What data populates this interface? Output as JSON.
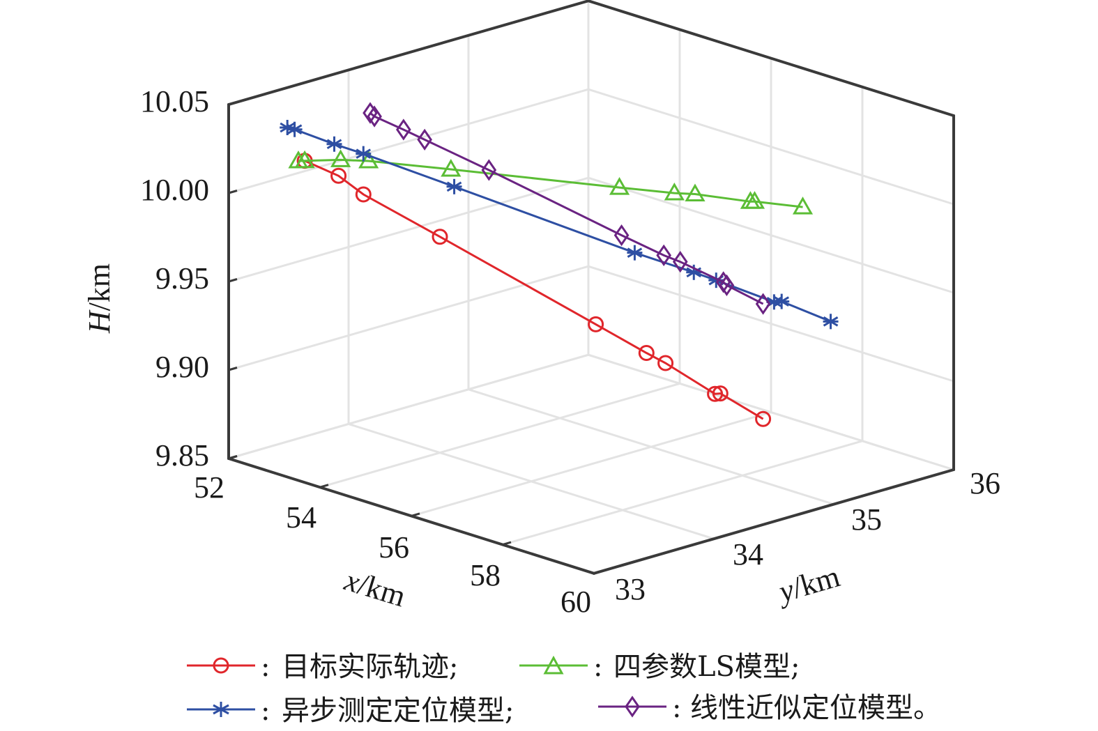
{
  "chart_data": {
    "type": "line3d",
    "title": "",
    "xlabel": {
      "var": "x",
      "unit": "/km"
    },
    "ylabel": {
      "var": "y",
      "unit": "/km"
    },
    "zlabel": {
      "var": "H",
      "unit": "/km"
    },
    "xlim": [
      52,
      60
    ],
    "ylim": [
      33,
      36
    ],
    "zlim": [
      9.85,
      10.05
    ],
    "xticks": [
      52,
      54,
      56,
      58,
      60
    ],
    "yticks": [
      33,
      34,
      35,
      36
    ],
    "zticks": [
      9.85,
      9.9,
      9.95,
      10.0,
      10.05
    ],
    "xtick_labels": [
      "52",
      "54",
      "56",
      "58",
      "60"
    ],
    "ytick_labels": [
      "33",
      "34",
      "35",
      "36"
    ],
    "ztick_labels": [
      "9.85",
      "9.90",
      "9.95",
      "10.00",
      "10.05"
    ],
    "grid": true,
    "legend_position": "bottom",
    "series": [
      {
        "name": "目标实际轨迹;",
        "color": "#e0262b",
        "marker": "circle",
        "x": [
          52.72,
          53.04,
          53.27,
          54.0,
          55.47,
          55.95,
          56.13,
          56.61,
          56.65,
          57.06
        ],
        "y": [
          33.36,
          33.52,
          33.64,
          34.0,
          34.74,
          34.98,
          35.07,
          35.3,
          35.33,
          35.53
        ],
        "z": [
          10.017,
          10.008,
          9.997,
          9.972,
          9.92,
          9.903,
          9.897,
          9.879,
          9.879,
          9.864
        ]
      },
      {
        "name": "四参数LS模型;",
        "color": "#5bbd35",
        "marker": "triangle",
        "x": [
          52.66,
          52.72,
          53.06,
          53.33,
          54.11,
          55.7,
          56.22,
          56.41,
          56.94,
          56.98,
          57.43
        ],
        "y": [
          33.33,
          33.36,
          33.53,
          33.66,
          34.05,
          34.85,
          35.11,
          35.21,
          35.47,
          35.49,
          35.72
        ],
        "z": [
          10.017,
          10.017,
          10.017,
          10.016,
          10.01,
          9.997,
          9.993,
          9.992,
          9.987,
          9.987,
          9.983
        ]
      },
      {
        "name": "异步测定定位模型;",
        "color": "#2e4fa3",
        "marker": "asterisk",
        "x": [
          52.55,
          52.63,
          53.0,
          53.27,
          54.13,
          55.85,
          56.41,
          56.61,
          57.17,
          57.23,
          57.7
        ],
        "y": [
          33.28,
          33.31,
          33.5,
          33.64,
          34.07,
          34.92,
          35.2,
          35.31,
          35.58,
          35.62,
          35.85
        ],
        "z": [
          10.036,
          10.035,
          10.026,
          10.02,
          10.0,
          9.96,
          9.948,
          9.943,
          9.93,
          9.93,
          9.918
        ]
      },
      {
        "name": "线性近似定位模型。",
        "color": "#6a2382",
        "marker": "diamond",
        "x": [
          53.34,
          53.38,
          53.65,
          53.85,
          54.47,
          55.72,
          56.12,
          56.27,
          56.69,
          56.71,
          57.06
        ],
        "y": [
          33.67,
          33.69,
          33.83,
          33.93,
          34.23,
          34.86,
          35.06,
          35.14,
          35.34,
          35.36,
          35.53
        ],
        "z": [
          10.043,
          10.041,
          10.033,
          10.027,
          10.009,
          9.97,
          9.958,
          9.954,
          9.942,
          9.94,
          9.929
        ]
      }
    ],
    "legend": [
      {
        "sep": ":",
        "label": "目标实际轨迹;"
      },
      {
        "sep": ":",
        "label": "四参数LS模型;"
      },
      {
        "sep": ":",
        "label": "异步测定定位模型;"
      },
      {
        "sep": ":",
        "label": "线性近似定位模型。"
      }
    ]
  }
}
